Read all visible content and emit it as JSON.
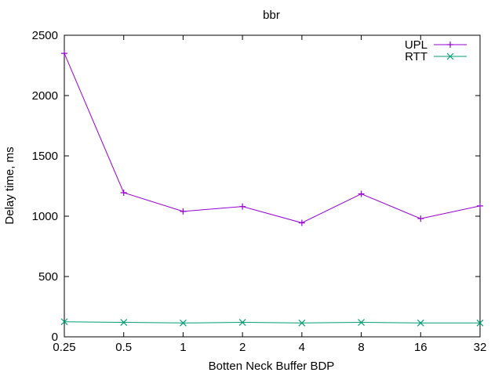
{
  "chart_data": {
    "type": "line",
    "title": "bbr",
    "xlabel": "Botten Neck Buffer BDP",
    "ylabel": "Delay time, ms",
    "categories": [
      "0.25",
      "0.5",
      "1",
      "2",
      "4",
      "8",
      "16",
      "32"
    ],
    "ylim": [
      0,
      2500
    ],
    "yticks": [
      0,
      500,
      1000,
      1500,
      2000,
      2500
    ],
    "grid": false,
    "legend": "top-right",
    "series": [
      {
        "name": "UPL",
        "color": "#9400d3",
        "marker": "plus",
        "values": [
          2350,
          1195,
          1040,
          1080,
          945,
          1185,
          980,
          1085
        ]
      },
      {
        "name": "RTT",
        "color": "#009e73",
        "marker": "cross",
        "values": [
          125,
          120,
          115,
          120,
          115,
          120,
          115,
          115
        ]
      }
    ]
  }
}
